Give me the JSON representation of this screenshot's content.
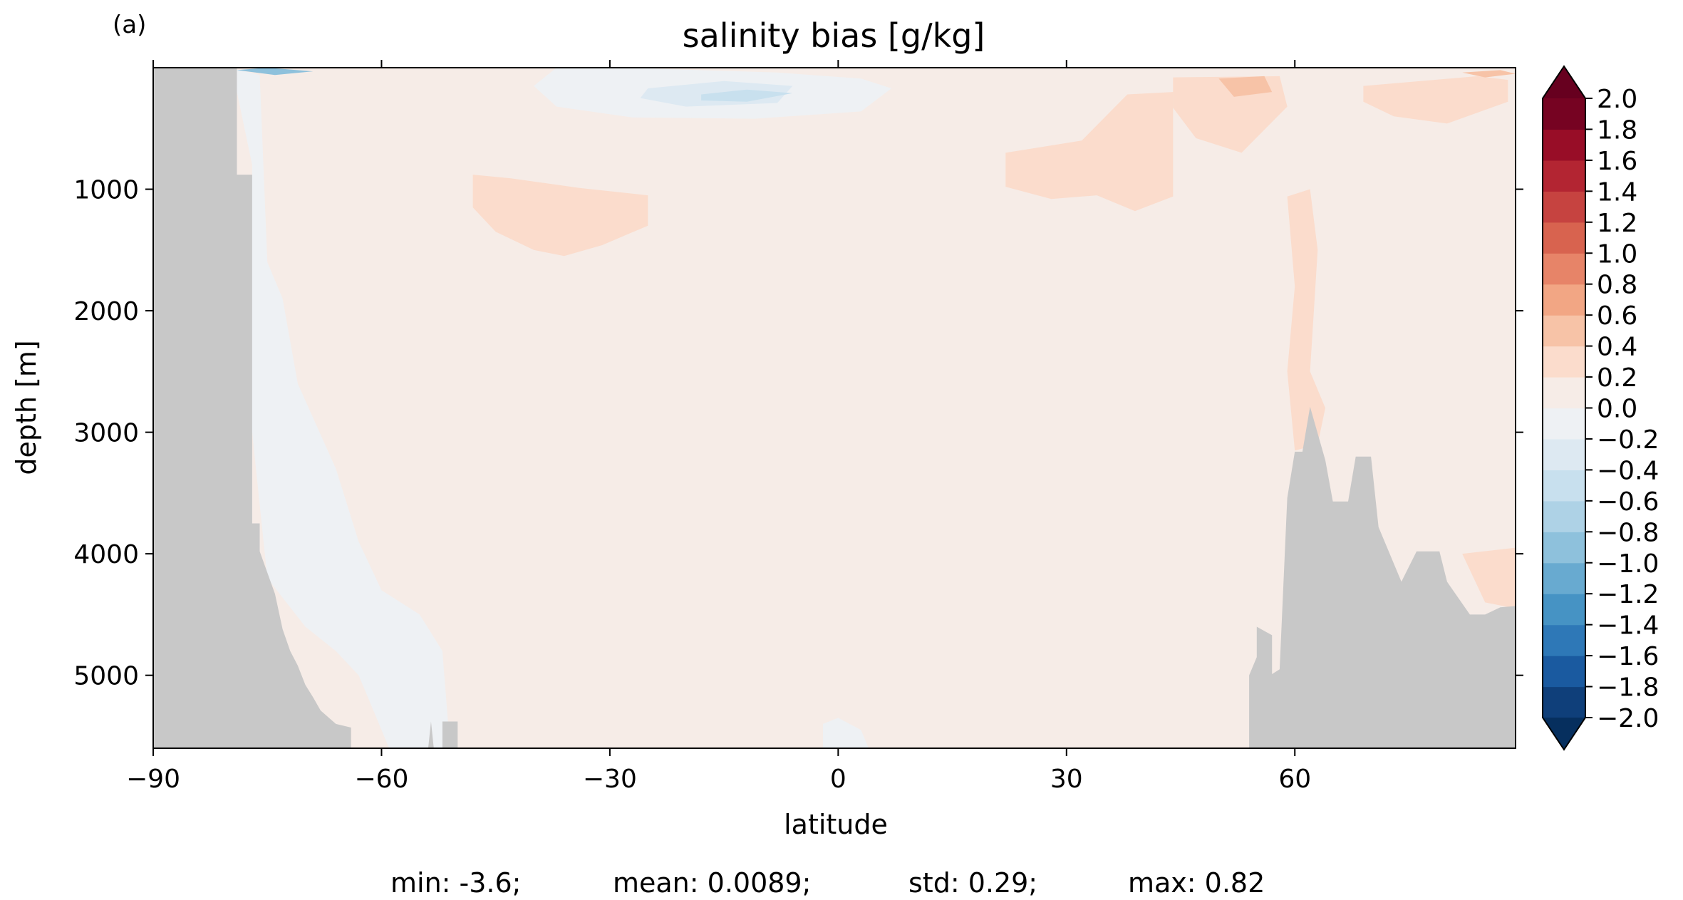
{
  "panel_label": "(a)",
  "chart_data": {
    "type": "heatmap",
    "title": "salinity bias [g/kg]",
    "xlabel": "latitude",
    "ylabel": "depth [m]",
    "xlim": [
      -90,
      89
    ],
    "ylim": [
      5600,
      0
    ],
    "y_inverted": true,
    "xticks": [
      -90,
      -60,
      -30,
      0,
      30,
      60
    ],
    "xtick_labels": [
      "−90",
      "−60",
      "−30",
      "0",
      "30",
      "60"
    ],
    "yticks": [
      1000,
      2000,
      3000,
      4000,
      5000
    ],
    "ytick_labels": [
      "1000",
      "2000",
      "3000",
      "4000",
      "5000"
    ],
    "colorbar": {
      "levels": [
        -2.0,
        -1.8,
        -1.6,
        -1.4,
        -1.2,
        -1.0,
        -0.8,
        -0.6,
        -0.4,
        -0.2,
        0.0,
        0.2,
        0.4,
        0.6,
        0.8,
        1.0,
        1.2,
        1.4,
        1.6,
        1.8,
        2.0
      ],
      "tick_labels": [
        "−2.0",
        "−1.8",
        "−1.6",
        "−1.4",
        "−1.2",
        "−1.0",
        "−0.8",
        "−0.6",
        "−0.4",
        "−0.2",
        "0.0",
        "0.2",
        "0.4",
        "0.6",
        "0.8",
        "1.0",
        "1.2",
        "1.4",
        "1.6",
        "1.8",
        "2.0"
      ],
      "colors": [
        "#0f3f7a",
        "#1a5aa0",
        "#2e78b7",
        "#4693c4",
        "#68aad0",
        "#8ec1dc",
        "#aed2e6",
        "#c8e0ee",
        "#dde9f2",
        "#eef1f4",
        "#f6ece7",
        "#fbdccc",
        "#f7c3a7",
        "#f2a684",
        "#e78468",
        "#d8634f",
        "#c64340",
        "#b32532",
        "#980d27",
        "#760322"
      ],
      "extend": "both",
      "under_color": "#062f5e",
      "over_color": "#67001f"
    },
    "background_level": 0.1,
    "land_color": "#c8c8c8",
    "regions": [
      {
        "level": -0.1,
        "points": [
          [
            -80,
            0
          ],
          [
            -76,
            60
          ],
          [
            -75,
            1600
          ],
          [
            -73,
            1900
          ],
          [
            -71,
            2600
          ],
          [
            -66,
            3300
          ],
          [
            -63,
            3900
          ],
          [
            -60,
            4300
          ],
          [
            -55,
            4500
          ],
          [
            -52,
            4800
          ],
          [
            -51,
            5600
          ],
          [
            -59,
            5600
          ],
          [
            -61,
            5300
          ],
          [
            -63,
            5000
          ],
          [
            -66,
            4800
          ],
          [
            -70,
            4600
          ],
          [
            -75,
            4200
          ],
          [
            -77,
            3000
          ],
          [
            -77,
            800
          ],
          [
            -79,
            200
          ]
        ]
      },
      {
        "level": -0.1,
        "points": [
          [
            -37,
            0
          ],
          [
            -28,
            0
          ],
          [
            -8,
            40
          ],
          [
            3,
            90
          ],
          [
            7,
            170
          ],
          [
            3,
            360
          ],
          [
            -11,
            420
          ],
          [
            -27,
            410
          ],
          [
            -37,
            320
          ],
          [
            -40,
            150
          ]
        ]
      },
      {
        "level": -0.3,
        "points": [
          [
            -25,
            170
          ],
          [
            -15,
            110
          ],
          [
            -6,
            150
          ],
          [
            -8,
            290
          ],
          [
            -20,
            320
          ],
          [
            -26,
            250
          ]
        ]
      },
      {
        "level": -0.5,
        "points": [
          [
            -18,
            220
          ],
          [
            -12,
            180
          ],
          [
            -6,
            210
          ],
          [
            -12,
            280
          ],
          [
            -18,
            270
          ]
        ]
      },
      {
        "level": -0.9,
        "points": [
          [
            -79,
            20
          ],
          [
            -75,
            0
          ],
          [
            -69,
            30
          ],
          [
            -74,
            60
          ]
        ]
      },
      {
        "level": -0.1,
        "points": [
          [
            -2,
            5400
          ],
          [
            0,
            5350
          ],
          [
            3,
            5450
          ],
          [
            4,
            5600
          ],
          [
            -2,
            5600
          ]
        ]
      },
      {
        "level": 0.3,
        "points": [
          [
            -48,
            880
          ],
          [
            -43,
            910
          ],
          [
            -34,
            990
          ],
          [
            -25,
            1050
          ],
          [
            -25,
            1300
          ],
          [
            -31,
            1460
          ],
          [
            -36,
            1550
          ],
          [
            -40,
            1500
          ],
          [
            -45,
            1350
          ],
          [
            -48,
            1150
          ]
        ]
      },
      {
        "level": 0.3,
        "points": [
          [
            22,
            700
          ],
          [
            32,
            600
          ],
          [
            38,
            220
          ],
          [
            44,
            200
          ],
          [
            44,
            1060
          ],
          [
            39,
            1180
          ],
          [
            34,
            1050
          ],
          [
            28,
            1080
          ],
          [
            22,
            980
          ]
        ]
      },
      {
        "level": 0.3,
        "points": [
          [
            44,
            80
          ],
          [
            58,
            70
          ],
          [
            59,
            320
          ],
          [
            53,
            700
          ],
          [
            47,
            580
          ],
          [
            44,
            330
          ]
        ]
      },
      {
        "level": 0.3,
        "points": [
          [
            69,
            150
          ],
          [
            84,
            70
          ],
          [
            88,
            100
          ],
          [
            88,
            280
          ],
          [
            80,
            460
          ],
          [
            73,
            400
          ],
          [
            69,
            280
          ]
        ]
      },
      {
        "level": 0.3,
        "points": [
          [
            59,
            1060
          ],
          [
            62,
            1000
          ],
          [
            63,
            1500
          ],
          [
            62,
            2500
          ],
          [
            64,
            2800
          ],
          [
            63,
            3100
          ],
          [
            60,
            3150
          ],
          [
            59,
            2500
          ],
          [
            60,
            1800
          ]
        ]
      },
      {
        "level": 0.5,
        "points": [
          [
            50,
            90
          ],
          [
            56,
            70
          ],
          [
            57,
            200
          ],
          [
            52,
            240
          ]
        ]
      },
      {
        "level": 0.5,
        "points": [
          [
            82,
            40
          ],
          [
            87,
            20
          ],
          [
            89,
            50
          ],
          [
            85,
            80
          ]
        ]
      },
      {
        "level": 0.3,
        "points": [
          [
            82,
            4000
          ],
          [
            89,
            3950
          ],
          [
            89,
            4450
          ],
          [
            85,
            4400
          ]
        ]
      }
    ],
    "land": [
      {
        "points": [
          [
            -90,
            0
          ],
          [
            -79,
            0
          ],
          [
            -79,
            880
          ],
          [
            -77,
            880
          ],
          [
            -77,
            3750
          ],
          [
            -76,
            3750
          ],
          [
            -76,
            3980
          ],
          [
            -74,
            4330
          ],
          [
            -73,
            4620
          ],
          [
            -72,
            4800
          ],
          [
            -71,
            4920
          ],
          [
            -70,
            5080
          ],
          [
            -69,
            5180
          ],
          [
            -68,
            5290
          ],
          [
            -66,
            5400
          ],
          [
            -64,
            5430
          ],
          [
            -64,
            5680
          ],
          [
            -90,
            5680
          ]
        ]
      },
      {
        "points": [
          [
            -54,
            5680
          ],
          [
            -53.5,
            5380
          ],
          [
            -53,
            5680
          ]
        ]
      },
      {
        "points": [
          [
            -52,
            5680
          ],
          [
            -52,
            5380
          ],
          [
            -50,
            5380
          ],
          [
            -50,
            5680
          ]
        ]
      },
      {
        "points": [
          [
            54,
            5680
          ],
          [
            54,
            5000
          ],
          [
            55,
            4850
          ],
          [
            55,
            4600
          ],
          [
            57,
            4670
          ],
          [
            57,
            4990
          ],
          [
            58,
            4950
          ],
          [
            59,
            3540
          ],
          [
            60,
            3160
          ],
          [
            61,
            3160
          ],
          [
            62,
            2790
          ],
          [
            64,
            3230
          ],
          [
            65,
            3570
          ],
          [
            67,
            3570
          ],
          [
            68,
            3200
          ],
          [
            70,
            3200
          ],
          [
            71,
            3780
          ],
          [
            74,
            4230
          ],
          [
            76,
            3980
          ],
          [
            79,
            3980
          ],
          [
            80,
            4230
          ],
          [
            83,
            4500
          ],
          [
            85,
            4500
          ],
          [
            87,
            4440
          ],
          [
            89,
            4430
          ],
          [
            89,
            5680
          ]
        ]
      }
    ]
  },
  "stats": {
    "min": "min: -3.6;",
    "mean": "mean: 0.0089;",
    "std": "std: 0.29;",
    "max": "max: 0.82"
  }
}
